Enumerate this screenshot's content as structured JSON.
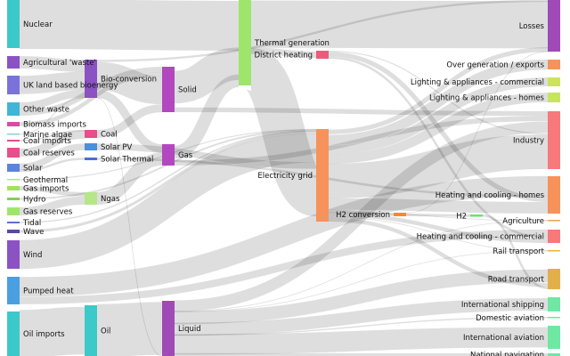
{
  "chart_data": {
    "type": "sankey",
    "colors": {
      "teal": "#3cc9c9",
      "purple": "#8a52c2",
      "blue": "#5b82de",
      "magenta": "#d94ba2",
      "pink": "#e94e8a",
      "green": "#9ee66b",
      "orange": "#f7925a",
      "gold": "#e2b04a",
      "olive": "#cde35a",
      "salmon": "#f7797c",
      "mint": "#6ee8a2",
      "link": "#000000"
    },
    "nodes": [
      {
        "id": "nuclear",
        "label": "Nuclear",
        "color": "#3cc9c9"
      },
      {
        "id": "agri_waste",
        "label": "Agricultural 'waste'",
        "color": "#8a52c2"
      },
      {
        "id": "uk_bio",
        "label": "UK land based bioenergy",
        "color": "#7a72da"
      },
      {
        "id": "other_waste",
        "label": "Other waste",
        "color": "#3fb6d8"
      },
      {
        "id": "bio_imports",
        "label": "Biomass imports",
        "color": "#d94ba2"
      },
      {
        "id": "marine_algae",
        "label": "Marine algae",
        "color": "#8ed0e0"
      },
      {
        "id": "coal_imports",
        "label": "Coal imports",
        "color": "#e94e8a"
      },
      {
        "id": "coal_reserves",
        "label": "Coal reserves",
        "color": "#e94e8a"
      },
      {
        "id": "solar",
        "label": "Solar",
        "color": "#5b82de"
      },
      {
        "id": "geothermal",
        "label": "Geothermal",
        "color": "#a9e68a"
      },
      {
        "id": "gas_imports",
        "label": "Gas imports",
        "color": "#a3e35a"
      },
      {
        "id": "hydro",
        "label": "Hydro",
        "color": "#7fd05a"
      },
      {
        "id": "gas_reserves",
        "label": "Gas reserves",
        "color": "#9ee66b"
      },
      {
        "id": "tidal",
        "label": "Tidal",
        "color": "#5b6fd0"
      },
      {
        "id": "wave",
        "label": "Wave",
        "color": "#5a47a8"
      },
      {
        "id": "wind",
        "label": "Wind",
        "color": "#8a52c2"
      },
      {
        "id": "pumped_heat",
        "label": "Pumped heat",
        "color": "#4a9fe0"
      },
      {
        "id": "oil_imports",
        "label": "Oil imports",
        "color": "#3cc9c9"
      },
      {
        "id": "bio_conversion",
        "label": "Bio-conversion",
        "color": "#8a52c2"
      },
      {
        "id": "coal",
        "label": "Coal",
        "color": "#e94e8a"
      },
      {
        "id": "solar_pv",
        "label": "Solar PV",
        "color": "#4a8fdc"
      },
      {
        "id": "solar_thermal",
        "label": "Solar Thermal",
        "color": "#4a6fd0"
      },
      {
        "id": "ngas",
        "label": "Ngas",
        "color": "#b6e68a"
      },
      {
        "id": "oil",
        "label": "Oil",
        "color": "#3cc9c9"
      },
      {
        "id": "solid",
        "label": "Solid",
        "color": "#b247c0"
      },
      {
        "id": "gas",
        "label": "Gas",
        "color": "#b247c0"
      },
      {
        "id": "liquid",
        "label": "Liquid",
        "color": "#a04ab8"
      },
      {
        "id": "thermal_gen",
        "label": "Thermal generation",
        "color": "#9ee66b"
      },
      {
        "id": "district_heating",
        "label": "District heating",
        "color": "#ef5a7a"
      },
      {
        "id": "electricity_grid",
        "label": "Electricity grid",
        "color": "#f7925a"
      },
      {
        "id": "h2_conversion",
        "label": "H2 conversion",
        "color": "#f08a3a"
      },
      {
        "id": "h2",
        "label": "H2",
        "color": "#6ee06b"
      },
      {
        "id": "losses",
        "label": "Losses",
        "color": "#a04ab8"
      },
      {
        "id": "over_gen",
        "label": "Over generation / exports",
        "color": "#f7925a"
      },
      {
        "id": "lighting_comm",
        "label": "Lighting & appliances - commercial",
        "color": "#cde35a"
      },
      {
        "id": "lighting_homes",
        "label": "Lighting & appliances - homes",
        "color": "#c6e65a"
      },
      {
        "id": "industry",
        "label": "Industry",
        "color": "#f7797c"
      },
      {
        "id": "heating_homes",
        "label": "Heating and cooling - homes",
        "color": "#f7925a"
      },
      {
        "id": "agriculture",
        "label": "Agriculture",
        "color": "#f2a14a"
      },
      {
        "id": "heating_comm",
        "label": "Heating and cooling - commercial",
        "color": "#f7797c"
      },
      {
        "id": "rail",
        "label": "Rail transport",
        "color": "#f0b040"
      },
      {
        "id": "road",
        "label": "Road transport",
        "color": "#e2b04a"
      },
      {
        "id": "intl_shipping",
        "label": "International shipping",
        "color": "#6ee8a2"
      },
      {
        "id": "domestic_aviation",
        "label": "Domestic aviation",
        "color": "#6ee8a2"
      },
      {
        "id": "intl_aviation",
        "label": "International aviation",
        "color": "#6ee8a2"
      },
      {
        "id": "national_nav",
        "label": "National navigation",
        "color": "#6ee8a2"
      }
    ],
    "links": [
      {
        "source": "nuclear",
        "target": "thermal_gen",
        "value": 839
      },
      {
        "source": "agri_waste",
        "target": "bio_conversion",
        "value": 124.7
      },
      {
        "source": "uk_bio",
        "target": "bio_conversion",
        "value": 182
      },
      {
        "source": "other_waste",
        "target": "solid",
        "value": 56.6
      },
      {
        "source": "other_waste",
        "target": "bio_conversion",
        "value": 77.8
      },
      {
        "source": "bio_imports",
        "target": "solid",
        "value": 35
      },
      {
        "source": "marine_algae",
        "target": "bio_conversion",
        "value": 4.4
      },
      {
        "source": "coal_imports",
        "target": "coal",
        "value": 11.6
      },
      {
        "source": "coal_reserves",
        "target": "coal",
        "value": 63.9
      },
      {
        "source": "solar",
        "target": "solar_pv",
        "value": 59.9
      },
      {
        "source": "solar",
        "target": "solar_thermal",
        "value": 19.3
      },
      {
        "source": "geothermal",
        "target": "electricity_grid",
        "value": 7.0
      },
      {
        "source": "gas_imports",
        "target": "ngas",
        "value": 40.7
      },
      {
        "source": "hydro",
        "target": "electricity_grid",
        "value": 6.9
      },
      {
        "source": "gas_reserves",
        "target": "ngas",
        "value": 82.2
      },
      {
        "source": "tidal",
        "target": "electricity_grid",
        "value": 9.0
      },
      {
        "source": "wave",
        "target": "electricity_grid",
        "value": 19.0
      },
      {
        "source": "wind",
        "target": "electricity_grid",
        "value": 289.4
      },
      {
        "source": "pumped_heat",
        "target": "heating_homes",
        "value": 193
      },
      {
        "source": "pumped_heat",
        "target": "heating_comm",
        "value": 70.7
      },
      {
        "source": "oil_imports",
        "target": "oil",
        "value": 504.3
      },
      {
        "source": "oil",
        "target": "liquid",
        "value": 611.0
      },
      {
        "source": "bio_conversion",
        "target": "solid",
        "value": 280.3
      },
      {
        "source": "bio_conversion",
        "target": "gas",
        "value": 81.1
      },
      {
        "source": "bio_conversion",
        "target": "losses",
        "value": 26.9
      },
      {
        "source": "bio_conversion",
        "target": "liquid",
        "value": 0.5
      },
      {
        "source": "coal",
        "target": "solid",
        "value": 75.6
      },
      {
        "source": "solar_pv",
        "target": "electricity_grid",
        "value": 59.9
      },
      {
        "source": "solar_thermal",
        "target": "heating_homes",
        "value": 19.3
      },
      {
        "source": "ngas",
        "target": "gas",
        "value": 122.95
      },
      {
        "source": "solid",
        "target": "thermal_gen",
        "value": 400.1
      },
      {
        "source": "solid",
        "target": "industry",
        "value": 46.8
      },
      {
        "source": "gas",
        "target": "thermal_gen",
        "value": 151.9
      },
      {
        "source": "gas",
        "target": "industry",
        "value": 48.6
      },
      {
        "source": "liquid",
        "target": "industry",
        "value": 121.1
      },
      {
        "source": "liquid",
        "target": "road",
        "value": 135.8
      },
      {
        "source": "liquid",
        "target": "intl_shipping",
        "value": 128.7
      },
      {
        "source": "liquid",
        "target": "domestic_aviation",
        "value": 14.5
      },
      {
        "source": "liquid",
        "target": "intl_aviation",
        "value": 206.2
      },
      {
        "source": "liquid",
        "target": "national_nav",
        "value": 33.2
      },
      {
        "source": "liquid",
        "target": "agriculture",
        "value": 4.4
      },
      {
        "source": "liquid",
        "target": "rail",
        "value": 7.9
      },
      {
        "source": "thermal_gen",
        "target": "electricity_grid",
        "value": 525.5
      },
      {
        "source": "thermal_gen",
        "target": "losses",
        "value": 787.1
      },
      {
        "source": "thermal_gen",
        "target": "district_heating",
        "value": 79.3
      },
      {
        "source": "district_heating",
        "target": "industry",
        "value": 10.6
      },
      {
        "source": "district_heating",
        "target": "heating_homes",
        "value": 46.2
      },
      {
        "source": "district_heating",
        "target": "heating_comm",
        "value": 22.5
      },
      {
        "source": "electricity_grid",
        "target": "over_gen",
        "value": 104.5
      },
      {
        "source": "electricity_grid",
        "target": "heating_homes",
        "value": 113.7
      },
      {
        "source": "electricity_grid",
        "target": "h2_conversion",
        "value": 27.1
      },
      {
        "source": "electricity_grid",
        "target": "industry",
        "value": 342.2
      },
      {
        "source": "electricity_grid",
        "target": "road",
        "value": 37.8
      },
      {
        "source": "electricity_grid",
        "target": "agriculture",
        "value": 4.4
      },
      {
        "source": "electricity_grid",
        "target": "heating_comm",
        "value": 40.7
      },
      {
        "source": "electricity_grid",
        "target": "losses",
        "value": 56.7
      },
      {
        "source": "electricity_grid",
        "target": "rail",
        "value": 7.9
      },
      {
        "source": "electricity_grid",
        "target": "lighting_comm",
        "value": 90.0
      },
      {
        "source": "electricity_grid",
        "target": "lighting_homes",
        "value": 93.5
      },
      {
        "source": "h2_conversion",
        "target": "h2",
        "value": 20.9
      },
      {
        "source": "h2_conversion",
        "target": "losses",
        "value": 6.2
      },
      {
        "source": "h2",
        "target": "road",
        "value": 20.9
      }
    ]
  }
}
